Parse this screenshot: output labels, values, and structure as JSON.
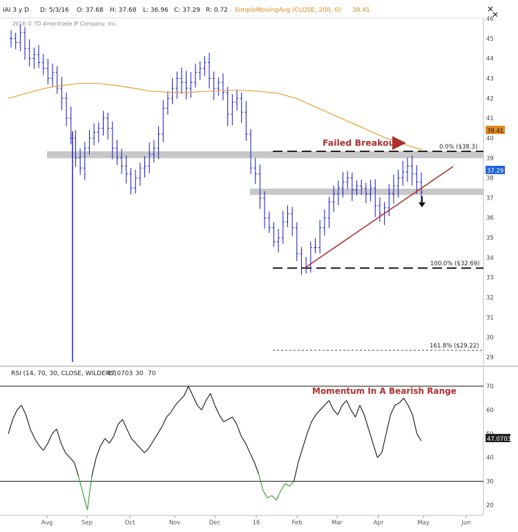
{
  "header": {
    "symbol": "IAI 3 y D",
    "date": "D: 5/3/16",
    "open": "O: 37.68",
    "high": "H: 37.68",
    "low": "L: 36.96",
    "close": "C: 37.29",
    "range": "R: 0.72",
    "indicator": "SimpleMovingAvg (CLOSE, 200, 0)",
    "indicator_value": "39.41"
  },
  "copyright": "2016 © TD Ameritrade IP Company, Inc.",
  "rsi_header": {
    "label": "RSI (14, 70, 30, CLOSE, WILDERS)",
    "value": "47.0703",
    "ob": "30",
    "os": "70"
  },
  "colors": {
    "price_bars": "#1010c8",
    "sma": "#e8a030",
    "trendline": "#b03030",
    "annotation": "#b03030",
    "band": "#c8c8c8",
    "rsi_line": "#111111",
    "rsi_oversold": "#2a9a2a",
    "price_badge": "#1f5fd8",
    "sma_badge": "#e08a20"
  },
  "chart_data": [
    {
      "type": "line",
      "subtype": "ohlc-bars",
      "yaxis_ticks": [
        "46",
        "45",
        "44",
        "43",
        "42",
        "41",
        "40",
        "39",
        "38",
        "37",
        "36",
        "35",
        "34",
        "33",
        "32",
        "31",
        "30",
        "29"
      ],
      "ylim": [
        28.8,
        46.2
      ],
      "xaxis_ticks": [
        "Aug",
        "Sep",
        "Oct",
        "Nov",
        "Dec",
        "16",
        "Feb",
        "Mar",
        "Apr",
        "May",
        "Jun"
      ],
      "grid": false,
      "series": [
        {
          "name": "IAI",
          "values": [
            45,
            44.8,
            45.3,
            44.5,
            44,
            44.2,
            43.8,
            43.5,
            43,
            43.3,
            42.5,
            42,
            41,
            40,
            39,
            38.5,
            39.5,
            40,
            40.3,
            40.5,
            41,
            40.5,
            39.5,
            39,
            38.6,
            38.2,
            37.5,
            38,
            38.5,
            38.6,
            39.2,
            39.5,
            40.2,
            41.5,
            42,
            42.5,
            43,
            42.8,
            42.5,
            42.8,
            43.3,
            43.5,
            43.8,
            43,
            42.5,
            42.8,
            42.3,
            41.2,
            41.8,
            42,
            41.3,
            40.2,
            38.5,
            38.2,
            37,
            36,
            35.5,
            34.8,
            35,
            35.8,
            36.2,
            35.5,
            34.2,
            33.5,
            33.5,
            34.5,
            34.5,
            35.5,
            36,
            36.8,
            37.2,
            37.5,
            37.8,
            38,
            37.4,
            37.6,
            37.5,
            37.2,
            37.5,
            36.6,
            36.2,
            36.5,
            37.2,
            37.6,
            38,
            38.3,
            38.6,
            38.2,
            37.8,
            37.29
          ]
        },
        {
          "name": "SimpleMovingAvg (CLOSE, 200, 0)",
          "values": [
            42,
            42.25,
            42.5,
            42.65,
            42.75,
            42.75,
            42.65,
            42.5,
            42.35,
            42.3,
            42.3,
            42.35,
            42.4,
            42.4,
            42.35,
            42.25,
            42.0,
            41.6,
            41.2,
            40.8,
            40.4,
            40.0,
            39.7,
            39.41
          ]
        }
      ],
      "price_levels": [
        "0.0%  ($38.3)",
        "100.0%  ($32.69)",
        "161.8%  ($29.22)"
      ],
      "badges": {
        "sma": "39.41",
        "price": "37.29"
      },
      "annotations": [
        "Failed Breakout"
      ]
    },
    {
      "type": "line",
      "yaxis_ticks": [
        "70",
        "60",
        "50",
        "40",
        "30",
        "20"
      ],
      "ylim": [
        16,
        71
      ],
      "series": [
        {
          "name": "RSI (14, 70, 30, CLOSE, WILDERS)",
          "values": [
            50,
            56,
            60,
            62,
            58,
            52,
            48,
            45,
            43,
            46,
            50,
            52,
            46,
            42,
            40,
            38,
            32,
            25,
            18,
            32,
            40,
            45,
            48,
            46,
            49,
            54,
            56,
            52,
            48,
            46,
            44,
            42,
            44,
            47,
            50,
            53,
            57,
            59,
            62,
            64,
            66,
            70,
            66,
            62,
            60,
            64,
            67,
            62,
            58,
            55,
            56,
            57,
            54,
            49,
            46,
            42,
            38,
            33,
            26,
            23,
            24,
            22,
            26,
            29,
            28,
            30,
            38,
            44,
            50,
            55,
            58,
            60,
            62,
            64,
            60,
            58,
            62,
            64,
            60,
            57,
            62,
            58,
            52,
            46,
            40,
            42,
            50,
            58,
            62,
            63,
            65,
            62,
            58,
            50,
            47
          ]
        }
      ],
      "badges": {
        "rsi": "47.0703"
      },
      "annotations": [
        "Momentum In A Bearish Range"
      ]
    }
  ]
}
